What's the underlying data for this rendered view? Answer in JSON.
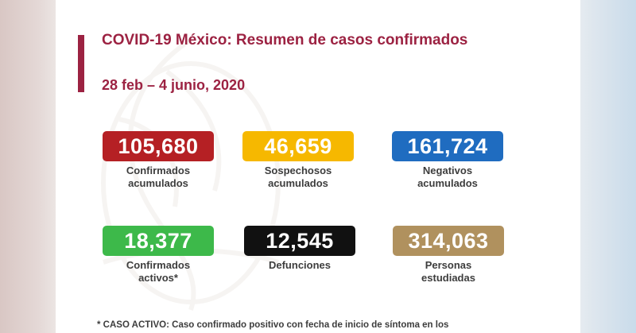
{
  "header": {
    "title": "COVID-19 México: Resumen de casos confirmados",
    "date_range": "28 feb – 4 junio, 2020"
  },
  "stats": [
    {
      "value": "105,680",
      "label": "Confirmados\nacumulados",
      "color": "#b52024"
    },
    {
      "value": "46,659",
      "label": "Sospechosos\nacumulados",
      "color": "#f6b800"
    },
    {
      "value": "161,724",
      "label": "Negativos\nacumulados",
      "color": "#1f6cc0"
    },
    {
      "value": "18,377",
      "label": "Confirmados\nactivos*",
      "color": "#3db94a"
    },
    {
      "value": "12,545",
      "label": "Defunciones",
      "color": "#111111"
    },
    {
      "value": "314,063",
      "label": "Personas\nestudiadas",
      "color": "#b0915e"
    }
  ],
  "footnote": "* CASO ACTIVO: Caso confirmado positivo con fecha de inicio de síntoma en los"
}
